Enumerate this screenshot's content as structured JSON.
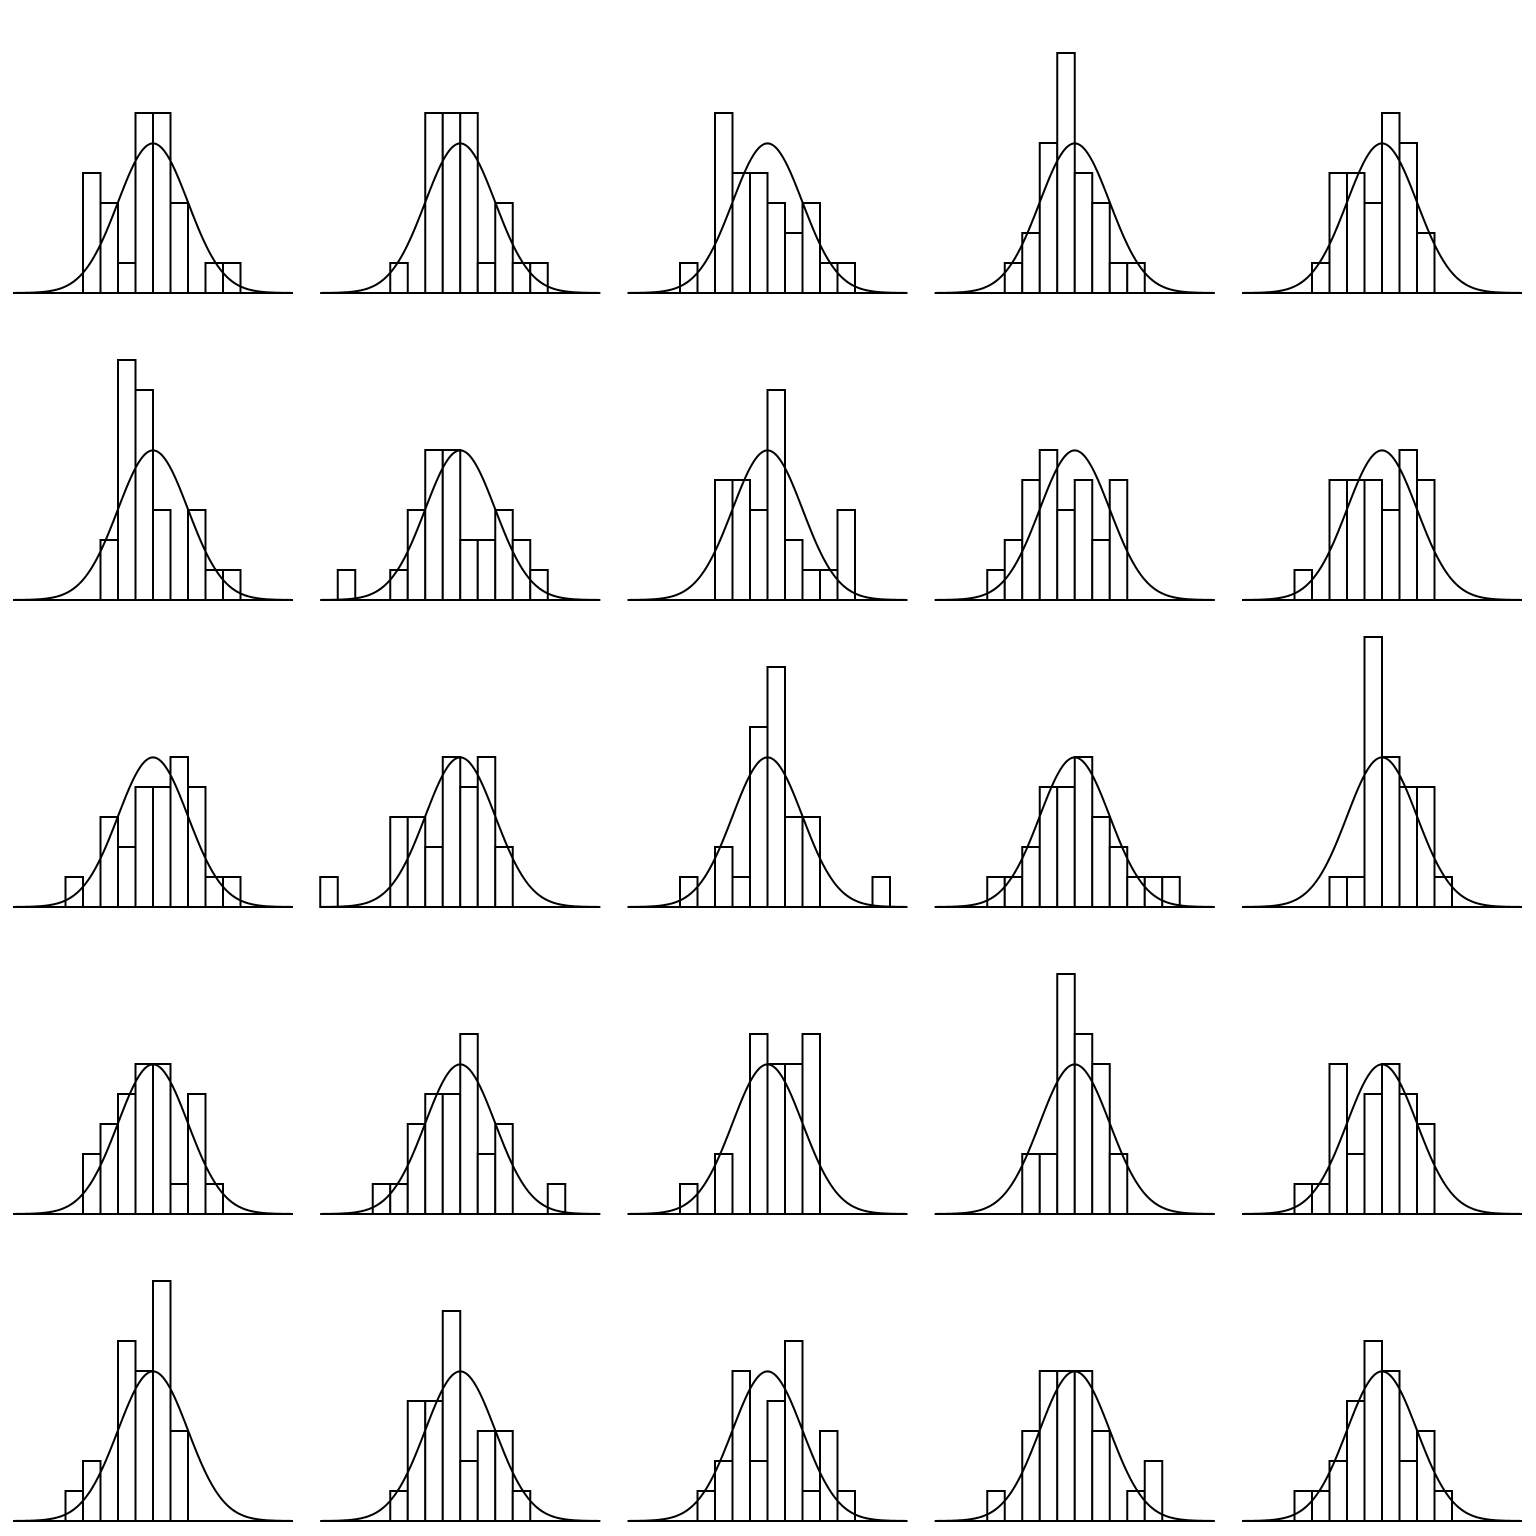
{
  "chart_data": [
    {
      "type": "histogram",
      "bins": [
        -2,
        -1.5,
        -1,
        -0.5,
        0,
        0.5,
        1,
        1.5,
        2,
        2.5
      ],
      "counts": [
        4,
        3,
        1,
        6,
        6,
        3,
        0,
        1,
        1
      ],
      "fit": {
        "mean": 0,
        "sd": 1
      },
      "xlim": [
        -4,
        4
      ],
      "ylim": [
        0,
        9.7
      ]
    },
    {
      "type": "histogram",
      "bins": [
        -2,
        -1.5,
        -1,
        -0.5,
        0,
        0.5,
        1,
        1.5,
        2,
        2.5
      ],
      "counts": [
        1,
        0,
        6,
        6,
        6,
        1,
        3,
        1,
        1
      ],
      "fit": {
        "mean": 0,
        "sd": 1
      },
      "xlim": [
        -4,
        4
      ],
      "ylim": [
        0,
        9.7
      ]
    },
    {
      "type": "histogram",
      "bins": [
        -2.5,
        -2,
        -1.5,
        -1,
        -0.5,
        0,
        0.5,
        1,
        1.5,
        2,
        2.5
      ],
      "counts": [
        1,
        0,
        6,
        4,
        4,
        3,
        2,
        3,
        1,
        1
      ],
      "fit": {
        "mean": 0,
        "sd": 1
      },
      "xlim": [
        -4,
        4
      ],
      "ylim": [
        0,
        9.7
      ]
    },
    {
      "type": "histogram",
      "bins": [
        -2,
        -1.5,
        -1,
        -0.5,
        0,
        0.5,
        1,
        1.5,
        2
      ],
      "counts": [
        1,
        2,
        5,
        8,
        4,
        3,
        1,
        1
      ],
      "fit": {
        "mean": 0,
        "sd": 1
      },
      "xlim": [
        -4,
        4
      ],
      "ylim": [
        0,
        9.7
      ]
    },
    {
      "type": "histogram",
      "bins": [
        -2,
        -1.5,
        -1,
        -0.5,
        0,
        0.5,
        1,
        1.5
      ],
      "counts": [
        1,
        4,
        4,
        3,
        6,
        5,
        2
      ],
      "fit": {
        "mean": 0,
        "sd": 1
      },
      "xlim": [
        -4,
        4
      ],
      "ylim": [
        0,
        9.7
      ]
    },
    {
      "type": "histogram",
      "bins": [
        -1.5,
        -1,
        -0.5,
        0,
        0.5,
        1,
        1.5,
        2,
        2.5
      ],
      "counts": [
        2,
        8,
        7,
        3,
        0,
        3,
        1,
        1
      ],
      "fit": {
        "mean": 0,
        "sd": 1
      },
      "xlim": [
        -4,
        4
      ],
      "ylim": [
        0,
        9.7
      ]
    },
    {
      "type": "histogram",
      "bins": [
        -3.5,
        -3,
        -2.5,
        -2,
        -1.5,
        -1,
        -0.5,
        0,
        0.5,
        1,
        1.5,
        2,
        2.5
      ],
      "counts": [
        1,
        0,
        0,
        1,
        3,
        5,
        5,
        2,
        2,
        3,
        2,
        1
      ],
      "fit": {
        "mean": 0,
        "sd": 1
      },
      "xlim": [
        -4,
        4
      ],
      "ylim": [
        0,
        9.7
      ]
    },
    {
      "type": "histogram",
      "bins": [
        -1.5,
        -1,
        -0.5,
        0,
        0.5,
        1,
        1.5,
        2,
        2.5
      ],
      "counts": [
        4,
        4,
        3,
        7,
        2,
        1,
        1,
        3
      ],
      "fit": {
        "mean": 0,
        "sd": 1
      },
      "xlim": [
        -4,
        4
      ],
      "ylim": [
        0,
        9.7
      ]
    },
    {
      "type": "histogram",
      "bins": [
        -2.5,
        -2,
        -1.5,
        -1,
        -0.5,
        0,
        0.5,
        1,
        1.5
      ],
      "counts": [
        1,
        2,
        4,
        5,
        3,
        4,
        2,
        4
      ],
      "fit": {
        "mean": 0,
        "sd": 1
      },
      "xlim": [
        -4,
        4
      ],
      "ylim": [
        0,
        9.7
      ]
    },
    {
      "type": "histogram",
      "bins": [
        -2.5,
        -2,
        -1.5,
        -1,
        -0.5,
        0,
        0.5,
        1,
        1.5
      ],
      "counts": [
        1,
        0,
        4,
        4,
        4,
        3,
        5,
        4
      ],
      "fit": {
        "mean": 0,
        "sd": 1
      },
      "xlim": [
        -4,
        4
      ],
      "ylim": [
        0,
        9.7
      ]
    },
    {
      "type": "histogram",
      "bins": [
        -2.5,
        -2,
        -1.5,
        -1,
        -0.5,
        0,
        0.5,
        1,
        1.5,
        2,
        2.5
      ],
      "counts": [
        1,
        0,
        3,
        2,
        4,
        4,
        5,
        4,
        1,
        1
      ],
      "fit": {
        "mean": 0,
        "sd": 1
      },
      "xlim": [
        -4,
        4
      ],
      "ylim": [
        0,
        9.7
      ]
    },
    {
      "type": "histogram",
      "bins": [
        -4,
        -3.5,
        -3,
        -2.5,
        -2,
        -1.5,
        -1,
        -0.5,
        0,
        0.5,
        1,
        1.5
      ],
      "counts": [
        1,
        0,
        0,
        0,
        3,
        3,
        2,
        5,
        4,
        5,
        2
      ],
      "fit": {
        "mean": 0,
        "sd": 1
      },
      "xlim": [
        -4,
        4
      ],
      "ylim": [
        0,
        9.7
      ]
    },
    {
      "type": "histogram",
      "bins": [
        -2.5,
        -2,
        -1.5,
        -1,
        -0.5,
        0,
        0.5,
        1,
        1.5,
        2,
        2.5,
        3,
        3.5
      ],
      "counts": [
        1,
        0,
        2,
        1,
        6,
        8,
        3,
        3,
        0,
        0,
        0,
        1
      ],
      "fit": {
        "mean": 0,
        "sd": 1
      },
      "xlim": [
        -4,
        4
      ],
      "ylim": [
        0,
        9.7
      ]
    },
    {
      "type": "histogram",
      "bins": [
        -2.5,
        -2,
        -1.5,
        -1,
        -0.5,
        0,
        0.5,
        1,
        1.5,
        2,
        2.5,
        3
      ],
      "counts": [
        1,
        1,
        2,
        4,
        4,
        5,
        3,
        2,
        1,
        1,
        1
      ],
      "fit": {
        "mean": 0,
        "sd": 1
      },
      "xlim": [
        -4,
        4
      ],
      "ylim": [
        0,
        9.7
      ]
    },
    {
      "type": "histogram",
      "bins": [
        -1.5,
        -1,
        -0.5,
        0,
        0.5,
        1,
        1.5,
        2
      ],
      "counts": [
        1,
        1,
        9,
        5,
        4,
        4,
        1
      ],
      "fit": {
        "mean": 0,
        "sd": 1
      },
      "xlim": [
        -4,
        4
      ],
      "ylim": [
        0,
        9.7
      ]
    },
    {
      "type": "histogram",
      "bins": [
        -2,
        -1.5,
        -1,
        -0.5,
        0,
        0.5,
        1,
        1.5,
        2
      ],
      "counts": [
        2,
        3,
        4,
        5,
        5,
        1,
        4,
        1
      ],
      "fit": {
        "mean": 0,
        "sd": 1
      },
      "xlim": [
        -4,
        4
      ],
      "ylim": [
        0,
        9.7
      ]
    },
    {
      "type": "histogram",
      "bins": [
        -2.5,
        -2,
        -1.5,
        -1,
        -0.5,
        0,
        0.5,
        1,
        1.5,
        2,
        2.5,
        3
      ],
      "counts": [
        1,
        1,
        3,
        4,
        4,
        6,
        2,
        3,
        0,
        0,
        1
      ],
      "fit": {
        "mean": 0,
        "sd": 1
      },
      "xlim": [
        -4,
        4
      ],
      "ylim": [
        0,
        9.7
      ]
    },
    {
      "type": "histogram",
      "bins": [
        -2.5,
        -2,
        -1.5,
        -1,
        -0.5,
        0,
        0.5,
        1,
        1.5
      ],
      "counts": [
        1,
        0,
        2,
        0,
        6,
        5,
        5,
        6
      ],
      "fit": {
        "mean": 0,
        "sd": 1
      },
      "xlim": [
        -4,
        4
      ],
      "ylim": [
        0,
        9.7
      ]
    },
    {
      "type": "histogram",
      "bins": [
        -1.5,
        -1,
        -0.5,
        0,
        0.5,
        1,
        1.5
      ],
      "counts": [
        2,
        2,
        8,
        6,
        5,
        2
      ],
      "fit": {
        "mean": 0,
        "sd": 1
      },
      "xlim": [
        -4,
        4
      ],
      "ylim": [
        0,
        9.7
      ]
    },
    {
      "type": "histogram",
      "bins": [
        -2.5,
        -2,
        -1.5,
        -1,
        -0.5,
        0,
        0.5,
        1,
        1.5
      ],
      "counts": [
        1,
        1,
        5,
        2,
        4,
        5,
        4,
        3
      ],
      "fit": {
        "mean": 0,
        "sd": 1
      },
      "xlim": [
        -4,
        4
      ],
      "ylim": [
        0,
        9.7
      ]
    },
    {
      "type": "histogram",
      "bins": [
        -2.5,
        -2,
        -1.5,
        -1,
        -0.5,
        0,
        0.5,
        1
      ],
      "counts": [
        1,
        2,
        0,
        6,
        5,
        8,
        3
      ],
      "fit": {
        "mean": 0,
        "sd": 1
      },
      "xlim": [
        -4,
        4
      ],
      "ylim": [
        0,
        9.7
      ]
    },
    {
      "type": "histogram",
      "bins": [
        -2,
        -1.5,
        -1,
        -0.5,
        0,
        0.5,
        1,
        1.5,
        2
      ],
      "counts": [
        1,
        4,
        4,
        7,
        2,
        3,
        3,
        1
      ],
      "fit": {
        "mean": 0,
        "sd": 1
      },
      "xlim": [
        -4,
        4
      ],
      "ylim": [
        0,
        9.7
      ]
    },
    {
      "type": "histogram",
      "bins": [
        -2,
        -1.5,
        -1,
        -0.5,
        0,
        0.5,
        1,
        1.5,
        2,
        2.5
      ],
      "counts": [
        1,
        2,
        5,
        2,
        4,
        6,
        1,
        3,
        1
      ],
      "fit": {
        "mean": 0,
        "sd": 1
      },
      "xlim": [
        -4,
        4
      ],
      "ylim": [
        0,
        9.7
      ]
    },
    {
      "type": "histogram",
      "bins": [
        -2.5,
        -2,
        -1.5,
        -1,
        -0.5,
        0,
        0.5,
        1,
        1.5,
        2,
        2.5
      ],
      "counts": [
        1,
        0,
        3,
        5,
        5,
        5,
        3,
        0,
        1,
        2
      ],
      "fit": {
        "mean": 0,
        "sd": 1
      },
      "xlim": [
        -4,
        4
      ],
      "ylim": [
        0,
        9.7
      ]
    },
    {
      "type": "histogram",
      "bins": [
        -2.5,
        -2,
        -1.5,
        -1,
        -0.5,
        0,
        0.5,
        1,
        1.5,
        2
      ],
      "counts": [
        1,
        1,
        2,
        4,
        6,
        5,
        2,
        3,
        1
      ],
      "fit": {
        "mean": 0,
        "sd": 1
      },
      "xlim": [
        -4,
        4
      ],
      "ylim": [
        0,
        9.7
      ]
    }
  ]
}
